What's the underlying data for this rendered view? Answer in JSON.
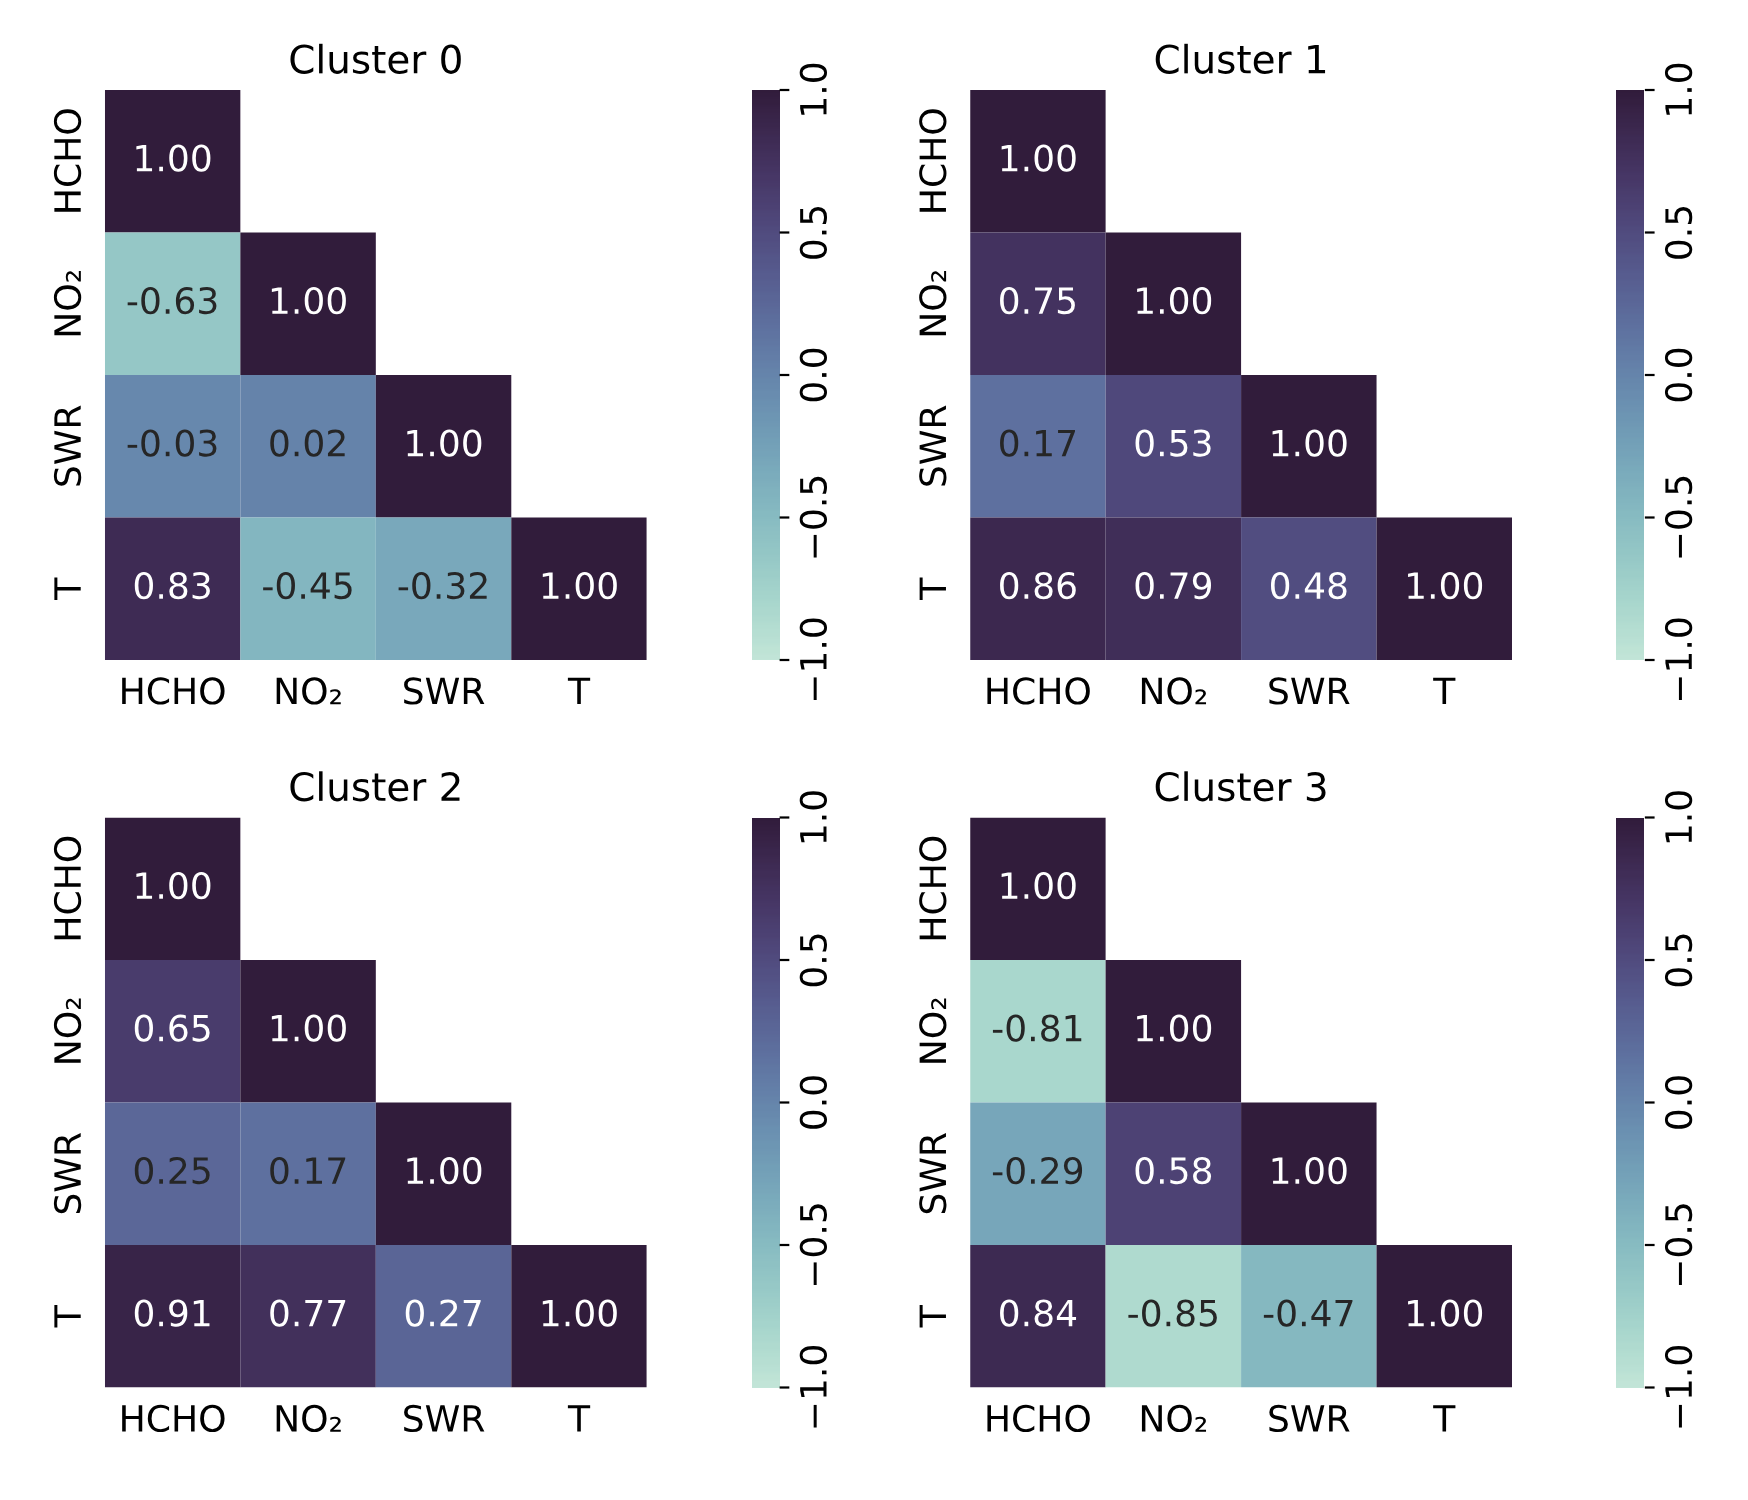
{
  "chart_data": [
    {
      "type": "heatmap",
      "title": "Cluster 0",
      "categories": [
        "HCHO",
        "NO₂",
        "SWR",
        "T"
      ],
      "y_categories": [
        "HCHO",
        "NO₂",
        "SWR",
        "T"
      ],
      "cells": [
        [
          1.0,
          null,
          null,
          null
        ],
        [
          -0.63,
          1.0,
          null,
          null
        ],
        [
          -0.03,
          0.02,
          1.0,
          null
        ],
        [
          0.83,
          -0.45,
          -0.32,
          1.0
        ]
      ],
      "cell_labels": [
        [
          "1.00",
          null,
          null,
          null
        ],
        [
          "-0.63",
          "1.00",
          null,
          null
        ],
        [
          "-0.03",
          "0.02",
          "1.00",
          null
        ],
        [
          "0.83",
          "-0.45",
          "-0.32",
          "1.00"
        ]
      ],
      "clim": [
        -1,
        1
      ],
      "cticks": [
        {
          "value": -1,
          "label": "−1.0"
        },
        {
          "value": -0.5,
          "label": "−0.5"
        },
        {
          "value": 0,
          "label": "0.0"
        },
        {
          "value": 0.5,
          "label": "0.5"
        },
        {
          "value": 1,
          "label": "1.0"
        }
      ]
    },
    {
      "type": "heatmap",
      "title": "Cluster 1",
      "categories": [
        "HCHO",
        "NO₂",
        "SWR",
        "T"
      ],
      "y_categories": [
        "HCHO",
        "NO₂",
        "SWR",
        "T"
      ],
      "cells": [
        [
          1.0,
          null,
          null,
          null
        ],
        [
          0.75,
          1.0,
          null,
          null
        ],
        [
          0.17,
          0.53,
          1.0,
          null
        ],
        [
          0.86,
          0.79,
          0.48,
          1.0
        ]
      ],
      "cell_labels": [
        [
          "1.00",
          null,
          null,
          null
        ],
        [
          "0.75",
          "1.00",
          null,
          null
        ],
        [
          "0.17",
          "0.53",
          "1.00",
          null
        ],
        [
          "0.86",
          "0.79",
          "0.48",
          "1.00"
        ]
      ],
      "clim": [
        -1,
        1
      ],
      "cticks": [
        {
          "value": -1,
          "label": "−1.0"
        },
        {
          "value": -0.5,
          "label": "−0.5"
        },
        {
          "value": 0,
          "label": "0.0"
        },
        {
          "value": 0.5,
          "label": "0.5"
        },
        {
          "value": 1,
          "label": "1.0"
        }
      ]
    },
    {
      "type": "heatmap",
      "title": "Cluster 2",
      "categories": [
        "HCHO",
        "NO₂",
        "SWR",
        "T"
      ],
      "y_categories": [
        "HCHO",
        "NO₂",
        "SWR",
        "T"
      ],
      "cells": [
        [
          1.0,
          null,
          null,
          null
        ],
        [
          0.65,
          1.0,
          null,
          null
        ],
        [
          0.25,
          0.17,
          1.0,
          null
        ],
        [
          0.91,
          0.77,
          0.27,
          1.0
        ]
      ],
      "cell_labels": [
        [
          "1.00",
          null,
          null,
          null
        ],
        [
          "0.65",
          "1.00",
          null,
          null
        ],
        [
          "0.25",
          "0.17",
          "1.00",
          null
        ],
        [
          "0.91",
          "0.77",
          "0.27",
          "1.00"
        ]
      ],
      "clim": [
        -1,
        1
      ],
      "cticks": [
        {
          "value": -1,
          "label": "−1.0"
        },
        {
          "value": -0.5,
          "label": "−0.5"
        },
        {
          "value": 0,
          "label": "0.0"
        },
        {
          "value": 0.5,
          "label": "0.5"
        },
        {
          "value": 1,
          "label": "1.0"
        }
      ]
    },
    {
      "type": "heatmap",
      "title": "Cluster 3",
      "categories": [
        "HCHO",
        "NO₂",
        "SWR",
        "T"
      ],
      "y_categories": [
        "HCHO",
        "NO₂",
        "SWR",
        "T"
      ],
      "cells": [
        [
          1.0,
          null,
          null,
          null
        ],
        [
          -0.81,
          1.0,
          null,
          null
        ],
        [
          -0.29,
          0.58,
          1.0,
          null
        ],
        [
          0.84,
          -0.85,
          -0.47,
          1.0
        ]
      ],
      "cell_labels": [
        [
          "1.00",
          null,
          null,
          null
        ],
        [
          "-0.81",
          "1.00",
          null,
          null
        ],
        [
          "-0.29",
          "0.58",
          "1.00",
          null
        ],
        [
          "0.84",
          "-0.85",
          "-0.47",
          "1.00"
        ]
      ],
      "clim": [
        -1,
        1
      ],
      "cticks": [
        {
          "value": -1,
          "label": "−1.0"
        },
        {
          "value": -0.5,
          "label": "−0.5"
        },
        {
          "value": 0,
          "label": "0.0"
        },
        {
          "value": 0.5,
          "label": "0.5"
        },
        {
          "value": 1,
          "label": "1.0"
        }
      ]
    }
  ]
}
